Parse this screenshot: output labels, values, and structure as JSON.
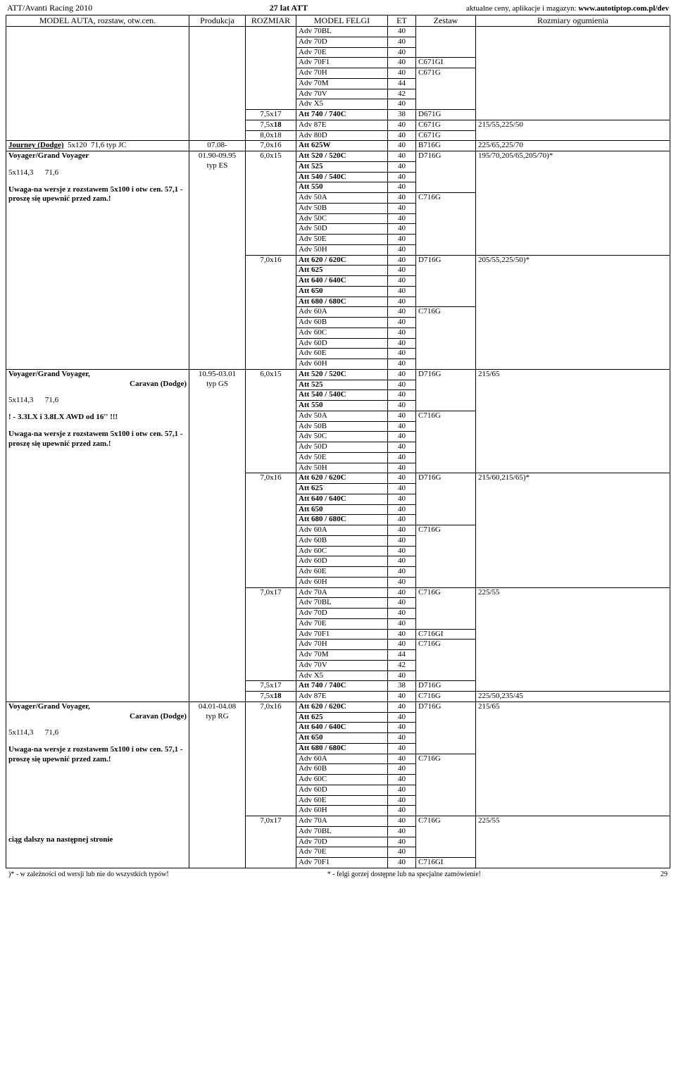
{
  "header": {
    "left": "ATT/Avanti Racing 2010",
    "center": "27 lat ATT",
    "right_prefix": "aktualne ceny, aplikacje i magazyn: ",
    "right_url": "www.autotiptop.com.pl/dev"
  },
  "columns": {
    "model": "MODEL AUTA, rozstaw, otw.cen.",
    "prod": "Produkcja",
    "rozmiar": "ROZMIAR",
    "felgi": "MODEL FELGI",
    "et": "ET",
    "zestaw": "Zestaw",
    "ogum": "Rozmiary ogumienia"
  },
  "groups": [
    {
      "modelHtml": "",
      "prod": "",
      "sizes": [
        {
          "rozm": "",
          "rows": [
            {
              "f": "Adv 70BL",
              "et": "40"
            },
            {
              "f": "Adv 70D",
              "et": "40"
            },
            {
              "f": "Adv 70E",
              "et": "40"
            },
            {
              "f": "Adv 70F1",
              "et": "40",
              "z": "C671GI"
            },
            {
              "f": "Adv 70H",
              "et": "40",
              "z": "C671G"
            },
            {
              "f": "Adv 70M",
              "et": "44"
            },
            {
              "f": "Adv 70V",
              "et": "42"
            },
            {
              "f": "Adv X5",
              "et": "40"
            }
          ]
        },
        {
          "rozm": "7,5x17",
          "rows": [
            {
              "f": "Att 740 / 740C",
              "et": "38",
              "z": "D671G",
              "fBold": true
            }
          ]
        },
        {
          "rozm": "7,5x18",
          "rozmBold18": true,
          "rows": [
            {
              "f": "Adv 87E",
              "et": "40",
              "z": "C671G",
              "o": "215/55,225/50"
            }
          ]
        },
        {
          "rozm": "8,0x18",
          "rows": [
            {
              "f": "Adv 80D",
              "et": "40",
              "z": "C671G"
            }
          ]
        }
      ]
    },
    {
      "modelHtml": "<span class='u bold'>Journey (Dodge)</span>&nbsp;&nbsp;5x120&nbsp;&nbsp;71,6 typ JC",
      "prod": "07.08-",
      "sizes": [
        {
          "rozm": "7,0x16",
          "rows": [
            {
              "f": "Att 625W",
              "et": "40",
              "z": "B716G",
              "o": "225/65,225/70",
              "fBold": true
            }
          ]
        }
      ]
    },
    {
      "modelHtml": "<div class='block'><span class='bold'>Voyager/Grand Voyager</span></div><div class='block'>5x114,3&nbsp;&nbsp;&nbsp;&nbsp;&nbsp;&nbsp;71,6</div><div class='block'><span class='bold'>Uwaga-na wersje z rozstawem 5x100 i otw cen. 57,1 - proszę się upewnić przed zam.!</span></div>",
      "prod": "01.90-09.95<br>typ ES",
      "sizes": [
        {
          "rozm": "6,0x15",
          "rows": [
            {
              "f": "Att 520 / 520C",
              "et": "40",
              "z": "D716G",
              "o": "195/70,205/65,205/70)*",
              "fBold": true
            },
            {
              "f": "Att 525",
              "et": "40",
              "fBold": true
            },
            {
              "f": "Att 540 / 540C",
              "et": "40",
              "fBold": true
            },
            {
              "f": "Att 550",
              "et": "40",
              "fBold": true
            },
            {
              "f": "Adv 50A",
              "et": "40",
              "z": "C716G"
            },
            {
              "f": "Adv 50B",
              "et": "40"
            },
            {
              "f": "Adv 50C",
              "et": "40"
            },
            {
              "f": "Adv 50D",
              "et": "40"
            },
            {
              "f": "Adv 50E",
              "et": "40"
            },
            {
              "f": "Adv 50H",
              "et": "40"
            }
          ]
        },
        {
          "rozm": "7,0x16",
          "rows": [
            {
              "f": "Att 620 / 620C",
              "et": "40",
              "z": "D716G",
              "o": "205/55,225/50)*",
              "fBold": true
            },
            {
              "f": "Att 625",
              "et": "40",
              "fBold": true
            },
            {
              "f": "Att 640 / 640C",
              "et": "40",
              "fBold": true
            },
            {
              "f": "Att 650",
              "et": "40",
              "fBold": true
            },
            {
              "f": "Att 680 / 680C",
              "et": "40",
              "fBold": true
            },
            {
              "f": "Adv 60A",
              "et": "40",
              "z": "C716G"
            },
            {
              "f": "Adv 60B",
              "et": "40"
            },
            {
              "f": "Adv 60C",
              "et": "40"
            },
            {
              "f": "Adv 60D",
              "et": "40"
            },
            {
              "f": "Adv 60E",
              "et": "40"
            },
            {
              "f": "Adv 60H",
              "et": "40"
            }
          ]
        }
      ]
    },
    {
      "modelHtml": "<div class='block'><span class='bold'>Voyager/Grand Voyager,</span><div class='right bold'>Caravan (Dodge)</div></div><div class='block'>5x114,3&nbsp;&nbsp;&nbsp;&nbsp;&nbsp;&nbsp;71,6</div><div class='block bold'>! - 3.3LX i 3.8LX AWD od 16'' !!!</div><div class='block'><span class='bold'>Uwaga-na wersje z rozstawem 5x100 i otw cen. 57,1 - proszę się upewnić przed zam.!</span></div>",
      "prod": "10.95-03.01<br>typ GS",
      "sizes": [
        {
          "rozm": "6,0x15",
          "rows": [
            {
              "f": "Att 520 / 520C",
              "et": "40",
              "z": "D716G",
              "o": "215/65",
              "fBold": true
            },
            {
              "f": "Att 525",
              "et": "40",
              "fBold": true
            },
            {
              "f": "Att 540 / 540C",
              "et": "40",
              "fBold": true
            },
            {
              "f": "Att 550",
              "et": "40",
              "fBold": true
            },
            {
              "f": "Adv 50A",
              "et": "40",
              "z": "C716G"
            },
            {
              "f": "Adv 50B",
              "et": "40"
            },
            {
              "f": "Adv 50C",
              "et": "40"
            },
            {
              "f": "Adv 50D",
              "et": "40"
            },
            {
              "f": "Adv 50E",
              "et": "40"
            },
            {
              "f": "Adv 50H",
              "et": "40"
            }
          ]
        },
        {
          "rozm": "7,0x16",
          "rows": [
            {
              "f": "Att 620 / 620C",
              "et": "40",
              "z": "D716G",
              "o": "215/60,215/65)*",
              "fBold": true
            },
            {
              "f": "Att 625",
              "et": "40",
              "fBold": true
            },
            {
              "f": "Att 640 / 640C",
              "et": "40",
              "fBold": true
            },
            {
              "f": "Att 650",
              "et": "40",
              "fBold": true
            },
            {
              "f": "Att 680 / 680C",
              "et": "40",
              "fBold": true
            },
            {
              "f": "Adv 60A",
              "et": "40",
              "z": "C716G"
            },
            {
              "f": "Adv 60B",
              "et": "40"
            },
            {
              "f": "Adv 60C",
              "et": "40"
            },
            {
              "f": "Adv 60D",
              "et": "40"
            },
            {
              "f": "Adv 60E",
              "et": "40"
            },
            {
              "f": "Adv 60H",
              "et": "40"
            }
          ]
        },
        {
          "rozm": "7,0x17",
          "rows": [
            {
              "f": "Adv 70A",
              "et": "40",
              "z": "C716G",
              "o": "225/55"
            },
            {
              "f": "Adv 70BL",
              "et": "40"
            },
            {
              "f": "Adv 70D",
              "et": "40"
            },
            {
              "f": "Adv 70E",
              "et": "40"
            },
            {
              "f": "Adv 70F1",
              "et": "40",
              "z": "C716GI"
            },
            {
              "f": "Adv 70H",
              "et": "40",
              "z": "C716G"
            },
            {
              "f": "Adv 70M",
              "et": "44"
            },
            {
              "f": "Adv 70V",
              "et": "42"
            },
            {
              "f": "Adv X5",
              "et": "40"
            }
          ]
        },
        {
          "rozm": "7,5x17",
          "rows": [
            {
              "f": "Att 740 / 740C",
              "et": "38",
              "z": "D716G",
              "fBold": true
            }
          ]
        },
        {
          "rozm": "7,5x18",
          "rozmBold18": true,
          "rows": [
            {
              "f": "Adv 87E",
              "et": "40",
              "z": "C716G",
              "o": "225/50,235/45"
            }
          ]
        }
      ]
    },
    {
      "modelHtml": "<div class='block'><span class='bold'>Voyager/Grand Voyager,</span><div class='right bold'>Caravan (Dodge)</div></div><div class='block'>5x114,3&nbsp;&nbsp;&nbsp;&nbsp;&nbsp;&nbsp;71,6</div><div class='block'><span class='bold'>Uwaga-na wersje z rozstawem 5x100 i otw cen. 57,1 - proszę się upewnić przed zam.!</span></div><div style='height:90px'></div><div class='bold'>ciąg dalszy na następnej stronie</div>",
      "prod": "04.01-04.08<br>typ RG",
      "sizes": [
        {
          "rozm": "7,0x16",
          "rows": [
            {
              "f": "Att 620 / 620C",
              "et": "40",
              "z": "D716G",
              "o": "215/65",
              "fBold": true
            },
            {
              "f": "Att 625",
              "et": "40",
              "fBold": true
            },
            {
              "f": "Att 640 / 640C",
              "et": "40",
              "fBold": true
            },
            {
              "f": "Att 650",
              "et": "40",
              "fBold": true
            },
            {
              "f": "Att 680 / 680C",
              "et": "40",
              "fBold": true
            },
            {
              "f": "Adv 60A",
              "et": "40",
              "z": "C716G"
            },
            {
              "f": "Adv 60B",
              "et": "40"
            },
            {
              "f": "Adv 60C",
              "et": "40"
            },
            {
              "f": "Adv 60D",
              "et": "40"
            },
            {
              "f": "Adv 60E",
              "et": "40"
            },
            {
              "f": "Adv 60H",
              "et": "40"
            }
          ]
        },
        {
          "rozm": "7,0x17",
          "rows": [
            {
              "f": "Adv 70A",
              "et": "40",
              "z": "C716G",
              "o": "225/55"
            },
            {
              "f": "Adv 70BL",
              "et": "40"
            },
            {
              "f": "Adv 70D",
              "et": "40"
            },
            {
              "f": "Adv 70E",
              "et": "40"
            },
            {
              "f": "Adv 70F1",
              "et": "40",
              "z": "C716GI"
            }
          ]
        }
      ]
    }
  ],
  "footer": {
    "left": ")* - w zależności od wersji lub nie do wszystkich typów!",
    "center": "* - felgi gorzej dostępne lub na specjalne zamówienie!",
    "page": "29"
  }
}
